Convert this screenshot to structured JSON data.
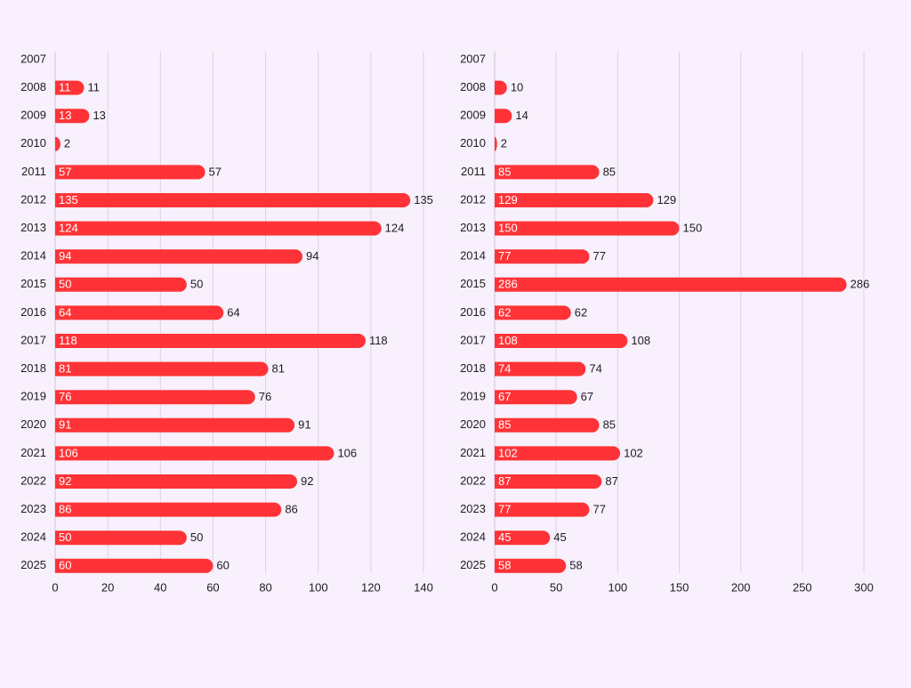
{
  "colors": {
    "bar": "#ff3337",
    "background": "#f8f0fc"
  },
  "chart_data": [
    {
      "type": "bar",
      "orientation": "horizontal",
      "categories": [
        "2007",
        "2008",
        "2009",
        "2010",
        "2011",
        "2012",
        "2013",
        "2014",
        "2015",
        "2016",
        "2017",
        "2018",
        "2019",
        "2020",
        "2021",
        "2022",
        "2023",
        "2024",
        "2025"
      ],
      "values": [
        null,
        11,
        13,
        2,
        57,
        135,
        124,
        94,
        50,
        64,
        118,
        81,
        76,
        91,
        106,
        92,
        86,
        50,
        60
      ],
      "xlim": [
        0,
        140
      ],
      "xticks": [
        0,
        20,
        40,
        60,
        80,
        100,
        120,
        140
      ],
      "tick_labels": [
        "0",
        "20",
        "40",
        "60",
        "80",
        "100",
        "120",
        "140"
      ],
      "grid": true
    },
    {
      "type": "bar",
      "orientation": "horizontal",
      "categories": [
        "2007",
        "2008",
        "2009",
        "2010",
        "2011",
        "2012",
        "2013",
        "2014",
        "2015",
        "2016",
        "2017",
        "2018",
        "2019",
        "2020",
        "2021",
        "2022",
        "2023",
        "2024",
        "2025"
      ],
      "values": [
        null,
        10,
        14,
        2,
        85,
        129,
        150,
        77,
        286,
        62,
        108,
        74,
        67,
        85,
        102,
        87,
        77,
        45,
        58
      ],
      "xlim": [
        0,
        300
      ],
      "xticks": [
        0,
        50,
        100,
        150,
        200,
        250,
        300
      ],
      "tick_labels": [
        "0",
        "50",
        "100",
        "150",
        "200",
        "250",
        "300"
      ],
      "grid": true
    }
  ]
}
